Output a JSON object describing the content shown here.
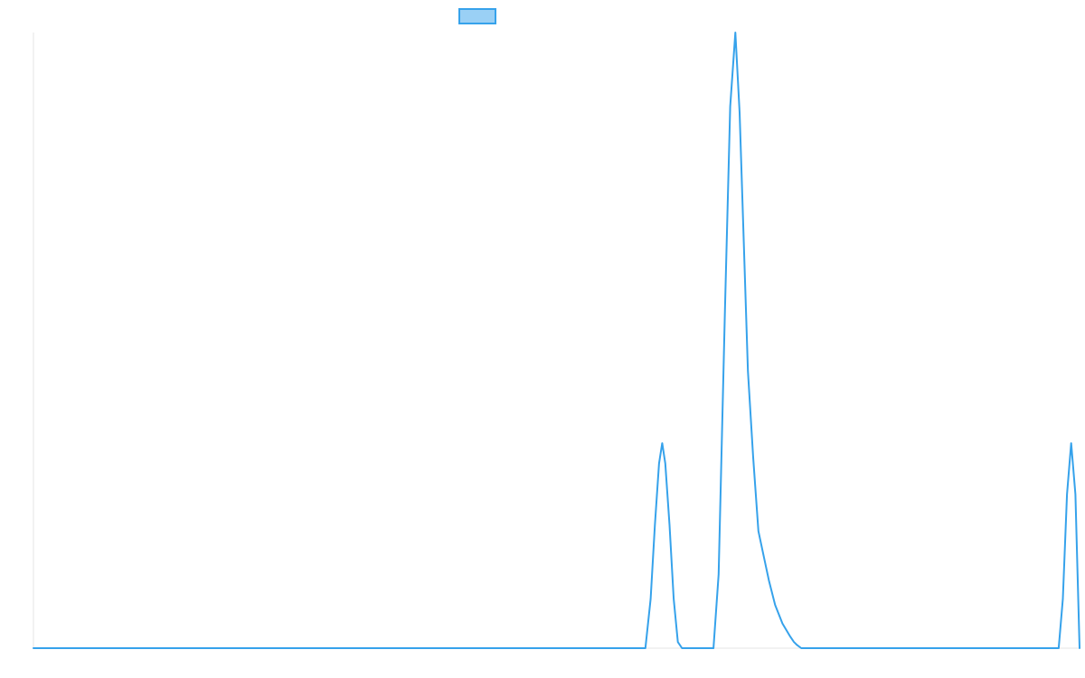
{
  "chart_data": {
    "type": "line",
    "title": "",
    "xlabel": "",
    "ylabel": "",
    "grid": false,
    "legend_position": "top",
    "xlim": [
      0,
      1
    ],
    "ylim": [
      0,
      1
    ],
    "series": [
      {
        "color": "#36a2eb",
        "fill_color": "#9ad0f5",
        "x": [
          0,
          0.585,
          0.59,
          0.594,
          0.598,
          0.601,
          0.604,
          0.608,
          0.612,
          0.616,
          0.62,
          0.624,
          0.63,
          0.64,
          0.65,
          0.655,
          0.661,
          0.666,
          0.671,
          0.675,
          0.679,
          0.683,
          0.688,
          0.693,
          0.698,
          0.703,
          0.709,
          0.716,
          0.723,
          0.727,
          0.73,
          0.734,
          0.98,
          0.984,
          0.988,
          0.992,
          0.996,
          1.0
        ],
        "y": [
          0,
          0,
          0.08,
          0.2,
          0.3,
          0.333,
          0.3,
          0.2,
          0.08,
          0.01,
          0,
          0,
          0,
          0,
          0,
          0.12,
          0.55,
          0.88,
          1.0,
          0.87,
          0.66,
          0.45,
          0.31,
          0.19,
          0.15,
          0.11,
          0.07,
          0.04,
          0.02,
          0.01,
          0.005,
          0,
          0,
          0.08,
          0.25,
          0.333,
          0.25,
          0
        ]
      }
    ]
  }
}
